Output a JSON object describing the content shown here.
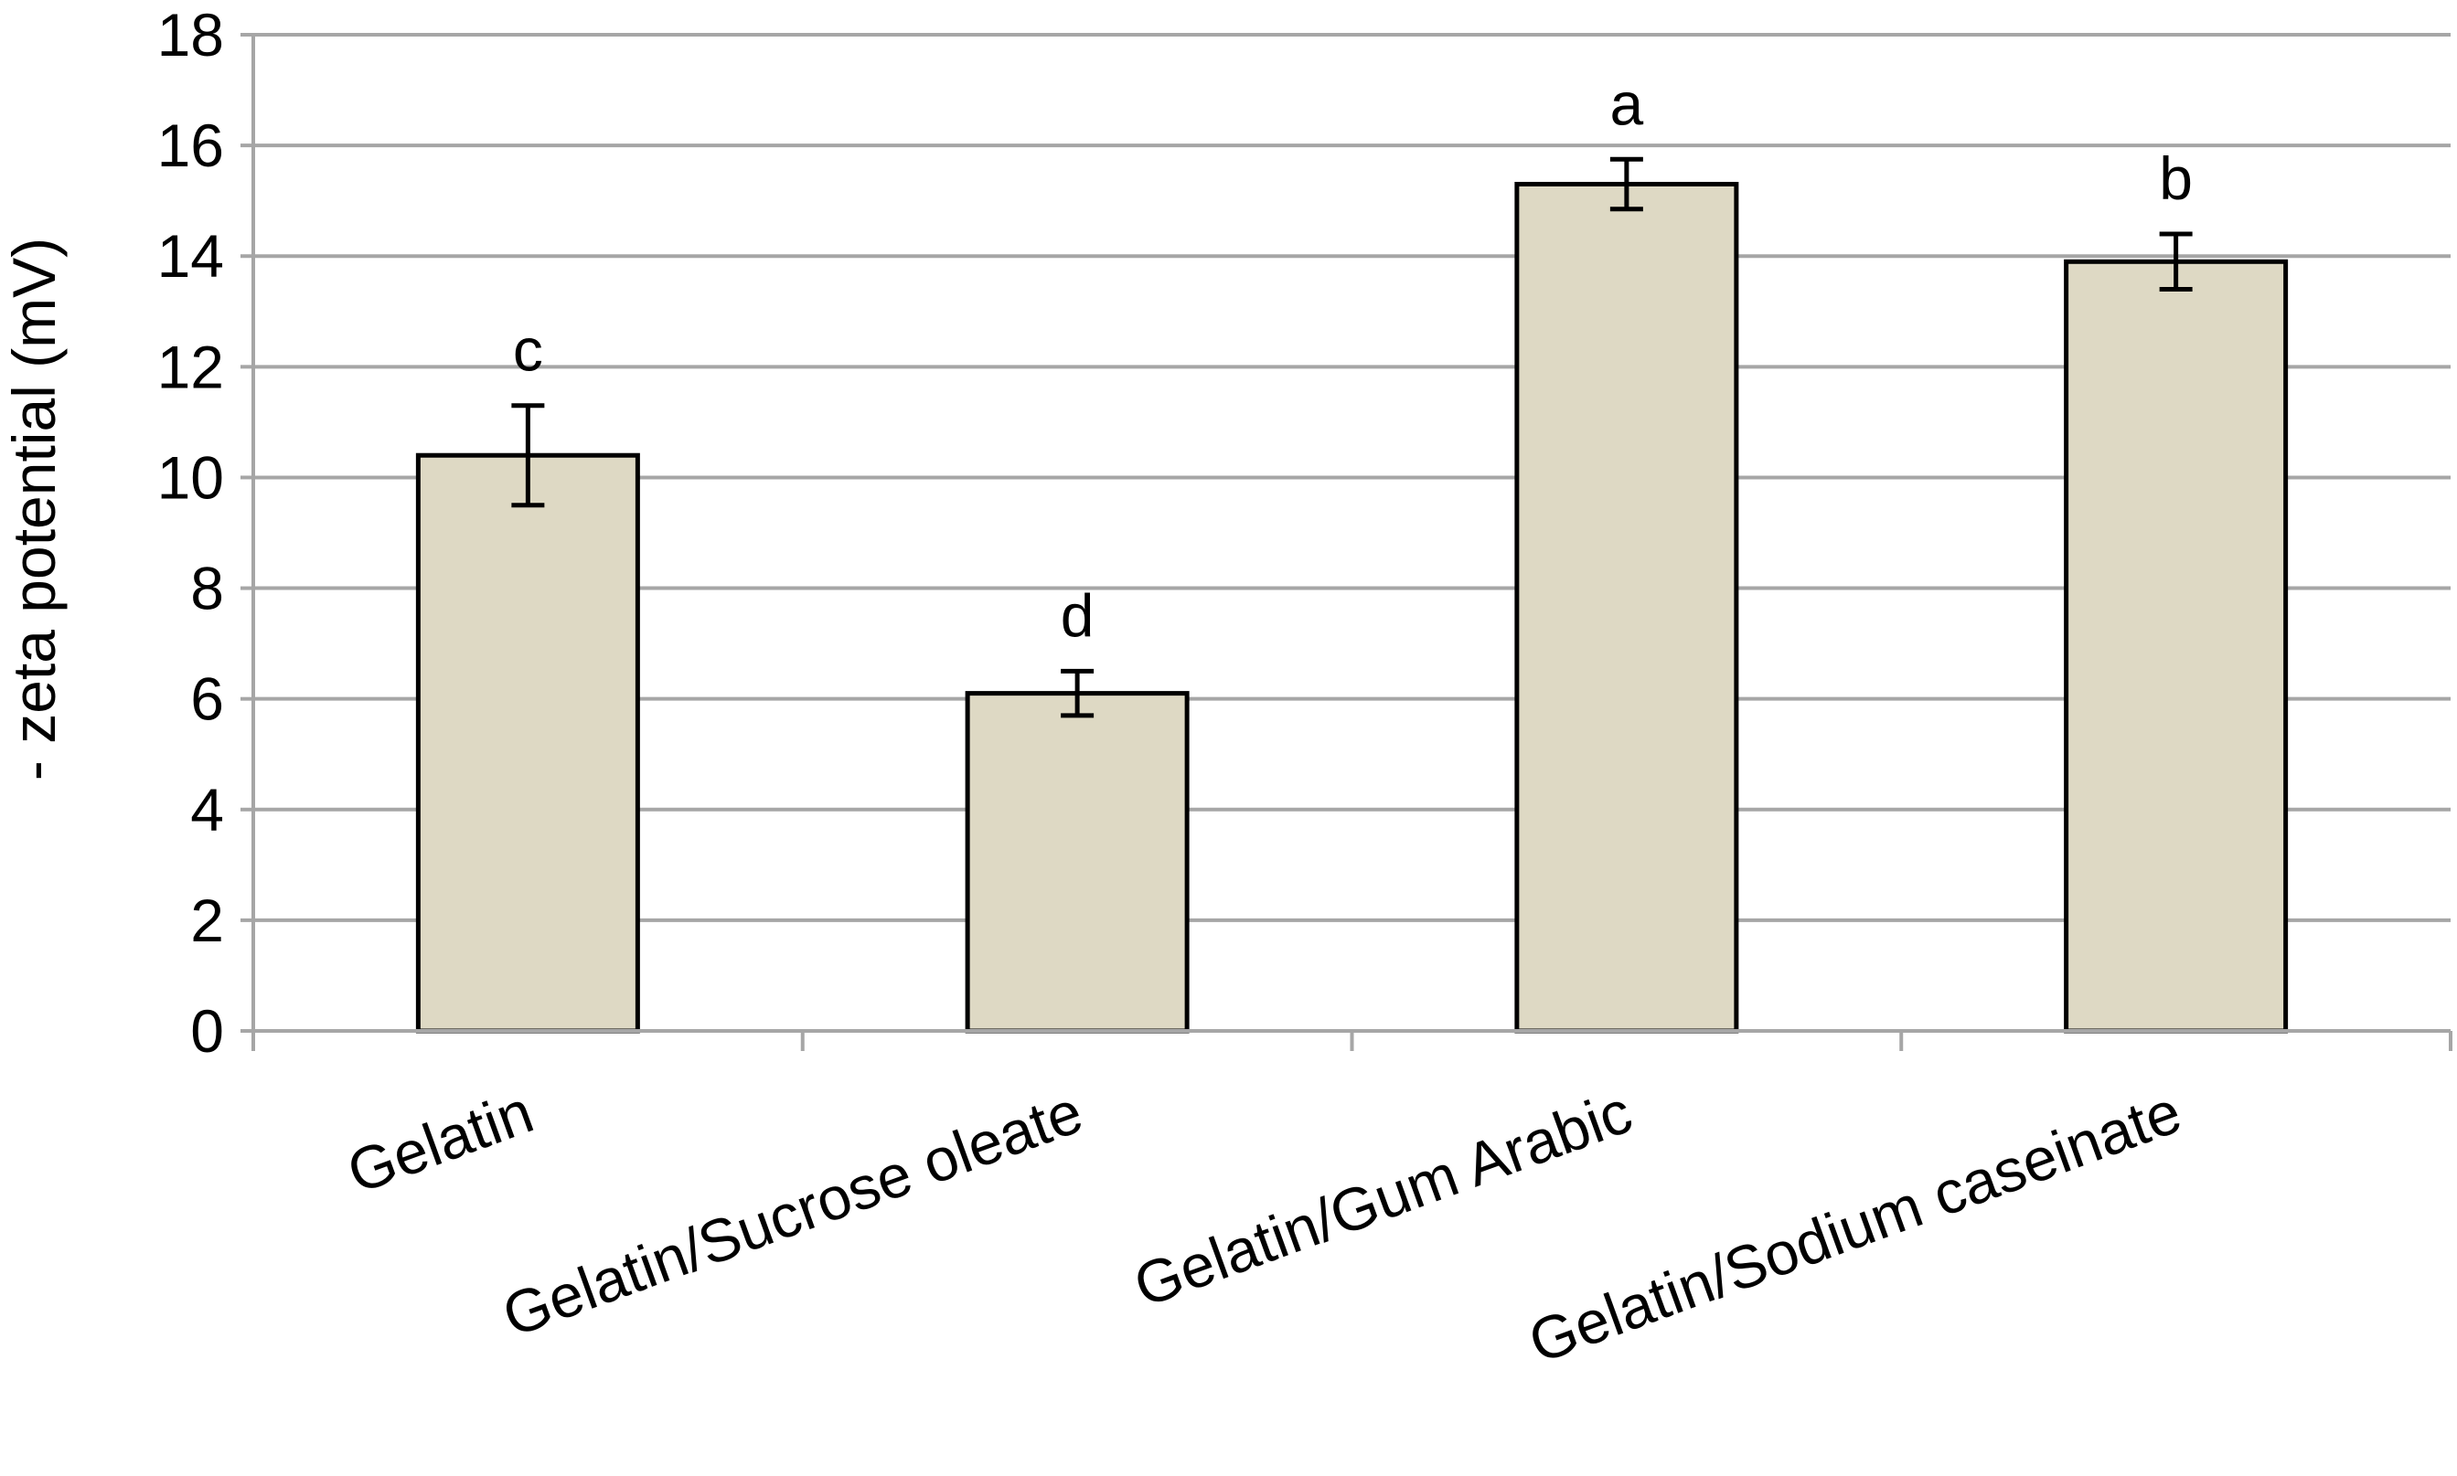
{
  "chart_data": {
    "type": "bar",
    "title": "",
    "xlabel": "",
    "ylabel": "- zeta potential (mV)",
    "categories": [
      "Gelatin",
      "Gelatin/Sucrose oleate",
      "Gelatin/Gum Arabic",
      "Gelatin/Sodium caseinate"
    ],
    "values": [
      10.4,
      6.1,
      15.3,
      13.9
    ],
    "errors": [
      0.9,
      0.4,
      0.45,
      0.5
    ],
    "significance_labels": [
      "c",
      "d",
      "a",
      "b"
    ],
    "ylim": [
      0,
      18
    ],
    "yticks": [
      0,
      2,
      4,
      6,
      8,
      10,
      12,
      14,
      16,
      18
    ],
    "grid": true,
    "legend": "none",
    "colors": {
      "bar_fill": "#ded9c4",
      "bar_stroke": "#000000",
      "grid": "#a6a6a6",
      "axis": "#a6a6a6",
      "error_bar": "#000000"
    }
  }
}
